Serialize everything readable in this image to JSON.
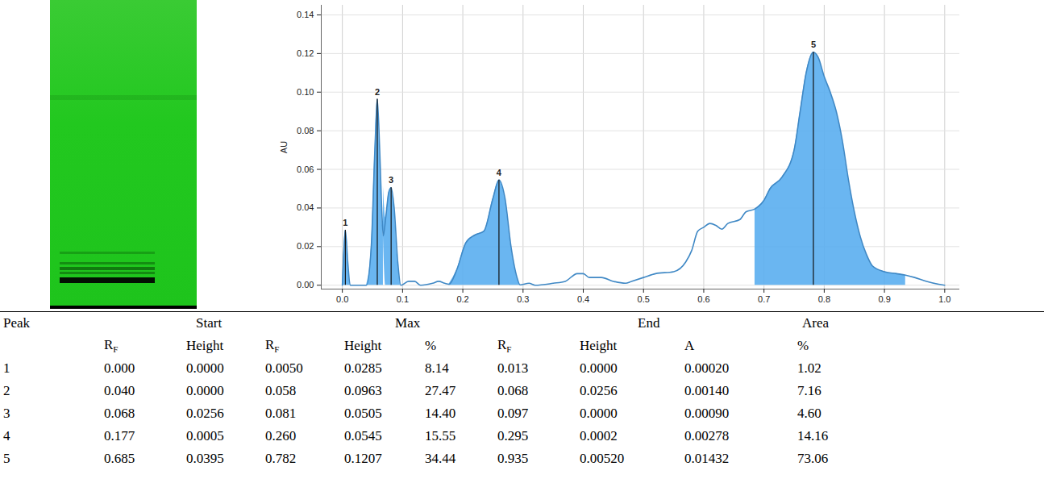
{
  "chart_data": {
    "type": "line",
    "color": "#3f88c5",
    "ylabel": "AU",
    "grid": true,
    "xlim": [
      -0.035,
      1.025
    ],
    "ylim": [
      -0.002,
      0.145
    ],
    "xticks": [
      {
        "value": 0,
        "label": "0.0"
      },
      0.1,
      0.2,
      0.3,
      0.4,
      0.5,
      0.6,
      0.7,
      0.8,
      0.9,
      {
        "value": 1,
        "label": "1.0"
      }
    ],
    "yticks": [
      {
        "value": 0,
        "label": "0.00"
      },
      {
        "value": 0.02,
        "label": "0.02"
      },
      {
        "value": 0.04,
        "label": "0.04"
      },
      {
        "value": 0.06,
        "label": "0.06"
      },
      {
        "value": 0.08,
        "label": "0.08"
      },
      {
        "value": 0.1,
        "label": "0.10"
      },
      {
        "value": 0.12,
        "label": "0.12"
      },
      {
        "value": 0.14,
        "label": "0.14"
      }
    ],
    "x": [
      0.0,
      0.002,
      0.005,
      0.009,
      0.013,
      0.02,
      0.04,
      0.048,
      0.054,
      0.058,
      0.062,
      0.066,
      0.068,
      0.072,
      0.077,
      0.081,
      0.086,
      0.092,
      0.097,
      0.11,
      0.12,
      0.13,
      0.15,
      0.16,
      0.17,
      0.177,
      0.19,
      0.205,
      0.22,
      0.235,
      0.25,
      0.26,
      0.27,
      0.28,
      0.29,
      0.295,
      0.31,
      0.32,
      0.35,
      0.37,
      0.39,
      0.4,
      0.41,
      0.43,
      0.45,
      0.47,
      0.48,
      0.5,
      0.52,
      0.55,
      0.57,
      0.58,
      0.59,
      0.6,
      0.61,
      0.62,
      0.63,
      0.64,
      0.66,
      0.67,
      0.685,
      0.7,
      0.71,
      0.73,
      0.75,
      0.76,
      0.77,
      0.782,
      0.79,
      0.8,
      0.81,
      0.82,
      0.83,
      0.84,
      0.85,
      0.86,
      0.87,
      0.88,
      0.9,
      0.92,
      0.935,
      0.95,
      0.97,
      0.99,
      1.0
    ],
    "values": [
      0.0,
      0.015,
      0.0285,
      0.012,
      0.0,
      0.0,
      0.0,
      0.02,
      0.07,
      0.0963,
      0.07,
      0.035,
      0.0256,
      0.035,
      0.048,
      0.0505,
      0.04,
      0.012,
      0.0,
      0.002,
      0.002,
      0.0,
      0.001,
      0.002,
      0.001,
      0.0005,
      0.008,
      0.022,
      0.026,
      0.028,
      0.045,
      0.0545,
      0.045,
      0.02,
      0.004,
      0.0002,
      0.001,
      0.0,
      0.001,
      0.002,
      0.006,
      0.006,
      0.004,
      0.004,
      0.002,
      0.001,
      0.002,
      0.004,
      0.006,
      0.007,
      0.012,
      0.018,
      0.028,
      0.03,
      0.032,
      0.031,
      0.029,
      0.032,
      0.034,
      0.038,
      0.0395,
      0.044,
      0.05,
      0.056,
      0.07,
      0.09,
      0.11,
      0.1207,
      0.118,
      0.108,
      0.1,
      0.09,
      0.075,
      0.055,
      0.038,
      0.025,
      0.016,
      0.01,
      0.007,
      0.006,
      0.0052,
      0.004,
      0.002,
      0.0005,
      0.0
    ],
    "peaks": [
      {
        "label": "1",
        "x": 0.005,
        "y": 0.0285,
        "start": 0.0,
        "end": 0.013
      },
      {
        "label": "2",
        "x": 0.058,
        "y": 0.0963,
        "start": 0.04,
        "end": 0.068
      },
      {
        "label": "3",
        "x": 0.081,
        "y": 0.0505,
        "start": 0.068,
        "end": 0.097
      },
      {
        "label": "4",
        "x": 0.26,
        "y": 0.0545,
        "start": 0.177,
        "end": 0.295
      },
      {
        "label": "5",
        "x": 0.782,
        "y": 0.1207,
        "start": 0.685,
        "end": 0.935
      }
    ]
  },
  "table": {
    "column_groups": [
      {
        "label": "Peak",
        "span": 1
      },
      {
        "label": "Start",
        "span": 2
      },
      {
        "label": "Max",
        "span": 3
      },
      {
        "label": "End",
        "span": 2
      },
      {
        "label": "Area",
        "span": 2
      }
    ],
    "columns": [
      null,
      {
        "text": "R",
        "subscript": "F"
      },
      "Height",
      {
        "text": "R",
        "subscript": "F"
      },
      "Height",
      "%",
      {
        "text": "R",
        "subscript": "F"
      },
      "Height",
      "A",
      "%"
    ],
    "rows": [
      [
        "1",
        "0.000",
        "0.0000",
        "0.0050",
        "0.0285",
        "8.14",
        "0.013",
        "0.0000",
        "0.00020",
        "1.02"
      ],
      [
        "2",
        "0.040",
        "0.0000",
        "0.058",
        "0.0963",
        "27.47",
        "0.068",
        "0.0256",
        "0.00140",
        "7.16"
      ],
      [
        "3",
        "0.068",
        "0.0256",
        "0.081",
        "0.0505",
        "14.40",
        "0.097",
        "0.0000",
        "0.00090",
        "4.60"
      ],
      [
        "4",
        "0.177",
        "0.0005",
        "0.260",
        "0.0545",
        "15.55",
        "0.295",
        "0.0002",
        "0.00278",
        "14.16"
      ],
      [
        "5",
        "0.685",
        "0.0395",
        "0.782",
        "0.1207",
        "34.44",
        "0.935",
        "0.00520",
        "0.01432",
        "73.06"
      ]
    ]
  }
}
